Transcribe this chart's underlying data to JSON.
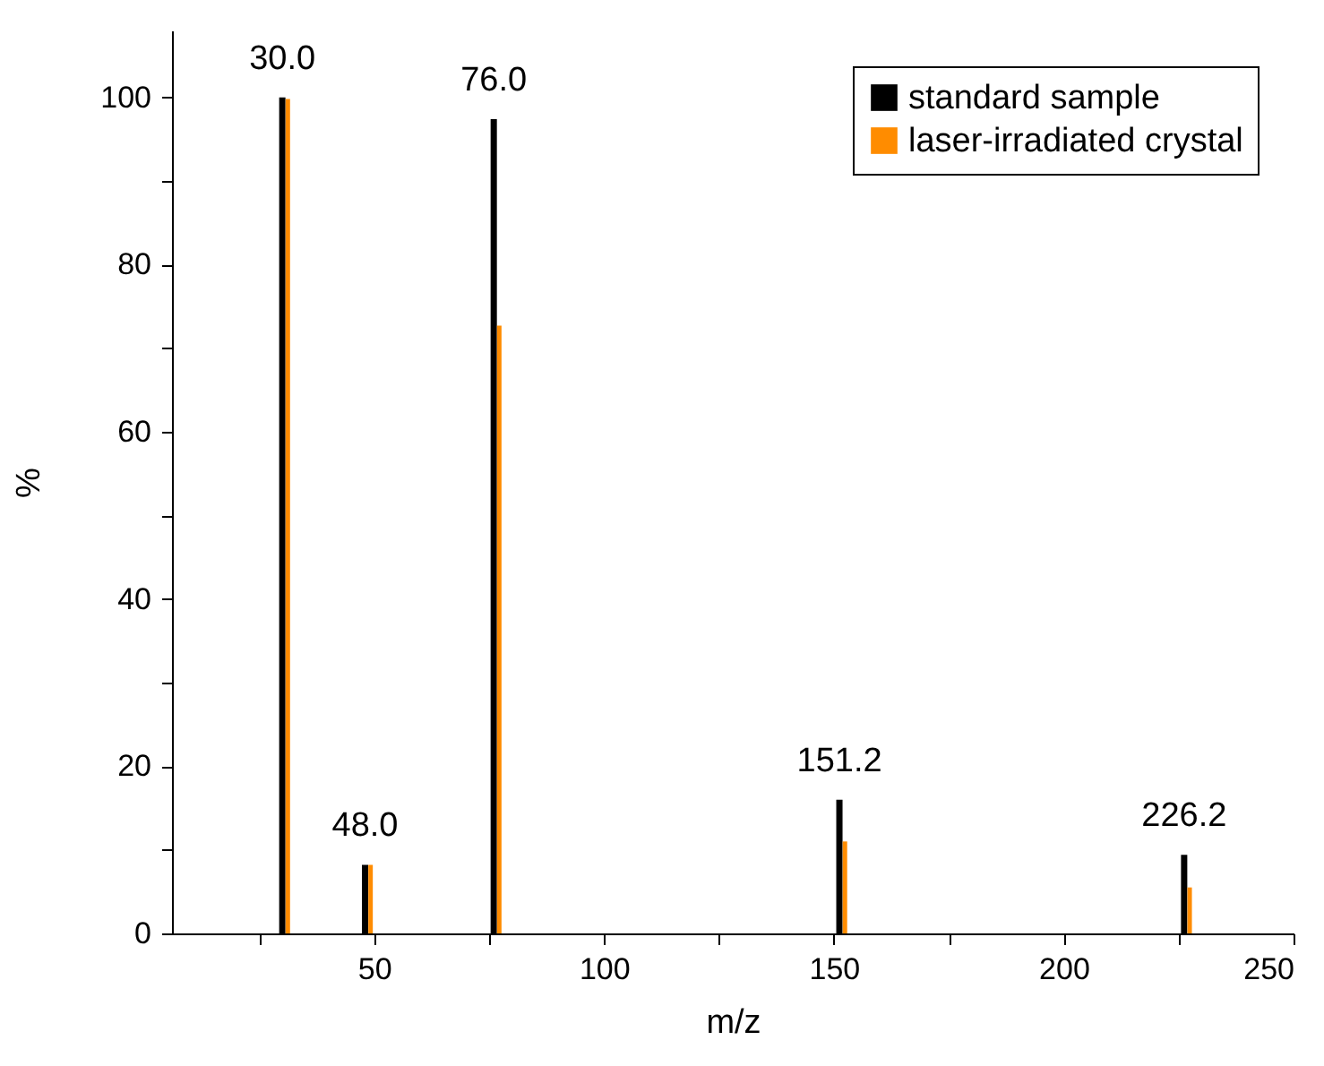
{
  "chart_data": {
    "type": "bar",
    "xlabel": "m/z",
    "ylabel": "%",
    "x": [
      30,
      48,
      76,
      151.2,
      226.2
    ],
    "series": [
      {
        "name": "standard sample",
        "color": "#000000",
        "values": [
          100,
          8.2,
          97.4,
          16.0,
          9.4
        ]
      },
      {
        "name": "laser-irradiated crystal",
        "color": "#ff8c00",
        "x": [
          31.2,
          49.2,
          77.2,
          152.4,
          227.4
        ],
        "values": [
          99.8,
          8.2,
          72.7,
          11.0,
          5.5
        ]
      }
    ],
    "xlim": [
      6,
      250
    ],
    "xticks": [
      {
        "value": 25,
        "label": null
      },
      50,
      {
        "value": 75,
        "label": null
      },
      100,
      {
        "value": 125,
        "label": null
      },
      150,
      {
        "value": 175,
        "label": null
      },
      200,
      {
        "value": 225,
        "label": null
      },
      250
    ],
    "ylim": [
      0,
      108
    ],
    "yticks": [
      0,
      {
        "value": 10,
        "label": null
      },
      20,
      {
        "value": 30,
        "label": null
      },
      40,
      {
        "value": 50,
        "label": null
      },
      60,
      {
        "value": 70,
        "label": null
      },
      80,
      {
        "value": 90,
        "label": null
      },
      100
    ],
    "annotations": [
      {
        "text": "30.0",
        "x": 30,
        "y": 100
      },
      {
        "text": "48.0",
        "x": 48,
        "y": 8.2
      },
      {
        "text": "76.0",
        "x": 76,
        "y": 97.4
      },
      {
        "text": "151.2",
        "x": 151.2,
        "y": 16.0
      },
      {
        "text": "226.2",
        "x": 226.2,
        "y": 9.4
      }
    ],
    "grid": false,
    "legend": "top right"
  }
}
